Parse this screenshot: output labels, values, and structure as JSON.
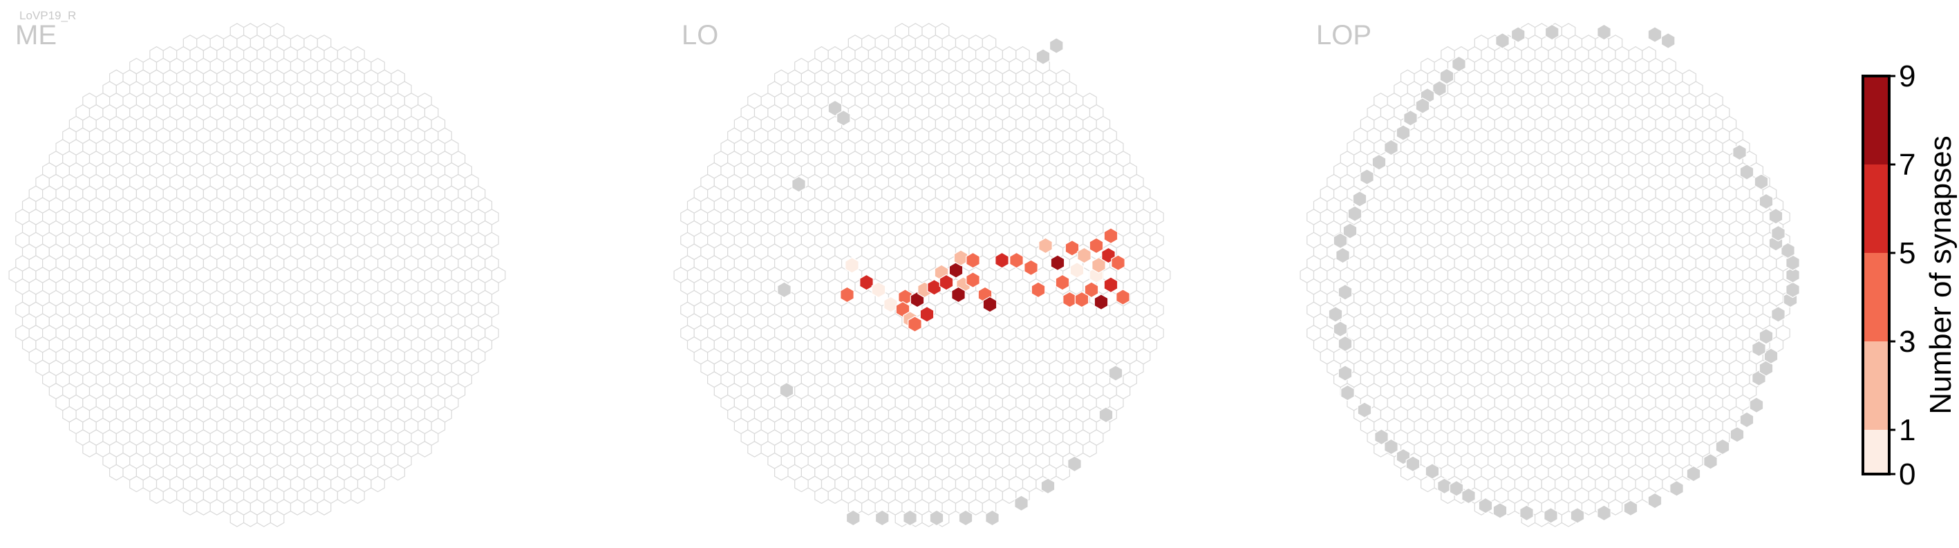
{
  "neuron_label": "LoVP19_R",
  "chart_data": {
    "type": "heatmap",
    "panels": [
      {
        "name": "ME",
        "outline_cells": [],
        "cells": []
      },
      {
        "name": "LO",
        "outline_cells": [
          [
            0.555,
            -0.935
          ],
          [
            0.5,
            -0.89
          ],
          [
            -0.36,
            -0.68
          ],
          [
            -0.325,
            -0.64
          ],
          [
            -0.51,
            -0.37
          ],
          [
            -0.57,
            0.06
          ],
          [
            -0.56,
            0.47
          ],
          [
            0.8,
            0.4
          ],
          [
            0.76,
            0.57
          ],
          [
            0.63,
            0.77
          ],
          [
            0.52,
            0.86
          ],
          [
            0.41,
            0.93
          ],
          [
            0.29,
            0.99
          ],
          [
            0.18,
            0.99
          ],
          [
            0.06,
            0.99
          ],
          [
            -0.05,
            0.99
          ],
          [
            -0.165,
            0.99
          ],
          [
            -0.285,
            0.99
          ]
        ],
        "cells": [
          [
            -0.29,
            -0.04,
            1
          ],
          [
            -0.31,
            0.08,
            4
          ],
          [
            -0.23,
            0.03,
            6
          ],
          [
            -0.18,
            0.06,
            1
          ],
          [
            -0.13,
            0.12,
            1
          ],
          [
            -0.07,
            0.09,
            4
          ],
          [
            -0.02,
            0.1,
            8
          ],
          [
            -0.08,
            0.14,
            5
          ],
          [
            -0.05,
            0.18,
            2
          ],
          [
            -0.03,
            0.2,
            4
          ],
          [
            0.02,
            0.16,
            7
          ],
          [
            0.01,
            0.06,
            3
          ],
          [
            0.05,
            0.05,
            6
          ],
          [
            0.08,
            -0.01,
            2
          ],
          [
            0.1,
            0.03,
            7
          ],
          [
            0.14,
            -0.02,
            9
          ],
          [
            0.16,
            -0.07,
            2
          ],
          [
            0.17,
            0.04,
            3
          ],
          [
            0.15,
            0.08,
            8
          ],
          [
            0.21,
            -0.06,
            5
          ],
          [
            0.21,
            0.02,
            4
          ],
          [
            0.26,
            0.08,
            5
          ],
          [
            0.28,
            0.12,
            9
          ],
          [
            0.33,
            -0.06,
            6
          ],
          [
            0.39,
            -0.06,
            4
          ],
          [
            0.45,
            -0.03,
            5
          ],
          [
            0.48,
            0.06,
            5
          ],
          [
            0.51,
            -0.12,
            3
          ],
          [
            0.56,
            -0.05,
            9
          ],
          [
            0.58,
            0.03,
            4
          ],
          [
            0.61,
            0.1,
            5
          ],
          [
            0.62,
            -0.11,
            5
          ],
          [
            0.67,
            -0.08,
            2
          ],
          [
            0.64,
            -0.02,
            1
          ],
          [
            0.72,
            0.0,
            1
          ],
          [
            0.72,
            -0.12,
            5
          ],
          [
            0.73,
            -0.04,
            3
          ],
          [
            0.77,
            -0.08,
            6
          ],
          [
            0.78,
            -0.16,
            5
          ],
          [
            0.81,
            -0.05,
            4
          ],
          [
            0.78,
            0.04,
            7
          ],
          [
            0.83,
            0.09,
            4
          ],
          [
            0.74,
            0.11,
            9
          ],
          [
            0.7,
            0.06,
            5
          ],
          [
            0.66,
            0.1,
            4
          ]
        ]
      },
      {
        "name": "LOP",
        "outline_cells": [
          [
            -0.19,
            -0.955
          ],
          [
            -0.125,
            -0.98
          ],
          [
            0.015,
            -0.99
          ],
          [
            0.23,
            -0.99
          ],
          [
            0.44,
            -0.98
          ],
          [
            0.495,
            -0.955
          ],
          [
            -0.37,
            -0.86
          ],
          [
            -0.42,
            -0.81
          ],
          [
            -0.45,
            -0.76
          ],
          [
            -0.5,
            -0.73
          ],
          [
            -0.52,
            -0.69
          ],
          [
            -0.57,
            -0.64
          ],
          [
            -0.6,
            -0.58
          ],
          [
            -0.65,
            -0.52
          ],
          [
            -0.7,
            -0.46
          ],
          [
            -0.75,
            -0.4
          ],
          [
            -0.78,
            -0.31
          ],
          [
            -0.8,
            -0.25
          ],
          [
            -0.82,
            -0.18
          ],
          [
            -0.86,
            -0.14
          ],
          [
            -0.85,
            -0.08
          ],
          [
            -0.84,
            0.07
          ],
          [
            -0.88,
            0.16
          ],
          [
            -0.86,
            0.22
          ],
          [
            -0.84,
            0.28
          ],
          [
            -0.84,
            0.4
          ],
          [
            -0.83,
            0.48
          ],
          [
            -0.76,
            0.55
          ],
          [
            -0.69,
            0.66
          ],
          [
            -0.65,
            0.7
          ],
          [
            -0.6,
            0.74
          ],
          [
            -0.56,
            0.77
          ],
          [
            -0.48,
            0.8
          ],
          [
            -0.43,
            0.86
          ],
          [
            -0.38,
            0.87
          ],
          [
            -0.33,
            0.9
          ],
          [
            -0.26,
            0.94
          ],
          [
            -0.2,
            0.96
          ],
          [
            -0.09,
            0.97
          ],
          [
            0.01,
            0.98
          ],
          [
            0.12,
            0.98
          ],
          [
            0.23,
            0.97
          ],
          [
            0.34,
            0.95
          ],
          [
            0.44,
            0.92
          ],
          [
            0.53,
            0.87
          ],
          [
            0.6,
            0.81
          ],
          [
            0.67,
            0.76
          ],
          [
            0.72,
            0.7
          ],
          [
            0.78,
            0.65
          ],
          [
            0.82,
            0.59
          ],
          [
            0.86,
            0.53
          ],
          [
            0.87,
            0.42
          ],
          [
            0.9,
            0.38
          ],
          [
            0.92,
            0.33
          ],
          [
            0.87,
            0.3
          ],
          [
            0.9,
            0.25
          ],
          [
            0.95,
            0.16
          ],
          [
            1.0,
            0.1
          ],
          [
            1.01,
            0.06
          ],
          [
            1.01,
            0.0
          ],
          [
            1.01,
            -0.05
          ],
          [
            0.99,
            -0.1
          ],
          [
            0.94,
            -0.13
          ],
          [
            0.95,
            -0.17
          ],
          [
            0.94,
            -0.24
          ],
          [
            0.9,
            -0.3
          ],
          [
            0.88,
            -0.38
          ],
          [
            0.82,
            -0.42
          ],
          [
            0.79,
            -0.5
          ]
        ],
        "cells": []
      }
    ],
    "colorbar": {
      "label": "Number of synapses",
      "ticks": [
        "0",
        "1",
        "3",
        "5",
        "7",
        "9"
      ],
      "bins": [
        {
          "from": 0,
          "to": 1,
          "color": "#fdede4"
        },
        {
          "from": 1,
          "to": 3,
          "color": "#f9bba2"
        },
        {
          "from": 3,
          "to": 5,
          "color": "#f36b50"
        },
        {
          "from": 5,
          "to": 7,
          "color": "#d42a25"
        },
        {
          "from": 7,
          "to": 9,
          "color": "#9d0f15"
        }
      ]
    },
    "colors": {
      "empty_stroke": "#d9d9d9",
      "outline_fill": "#cfcfcf",
      "label_color": "#c8c8c8"
    }
  }
}
